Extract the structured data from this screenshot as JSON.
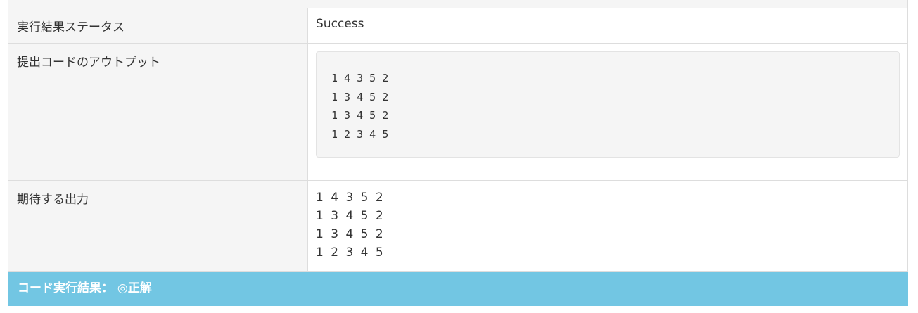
{
  "rows": [
    {
      "label": "実行結果ステータス",
      "value": "Success"
    },
    {
      "label": "提出コードのアウトプット",
      "lines": [
        "1 4 3 5 2",
        "1 3 4 5 2",
        "1 3 4 5 2",
        "1 2 3 4 5"
      ]
    },
    {
      "label": "期待する出力",
      "lines": [
        "1 4 3 5 2",
        "1 3 4 5 2",
        "1 3 4 5 2",
        "1 2 3 4 5"
      ]
    }
  ],
  "result": {
    "label": "コード実行結果：",
    "value": "◎正解"
  },
  "colors": {
    "banner": "#72c6e3",
    "label_bg": "#f5f5f5"
  }
}
